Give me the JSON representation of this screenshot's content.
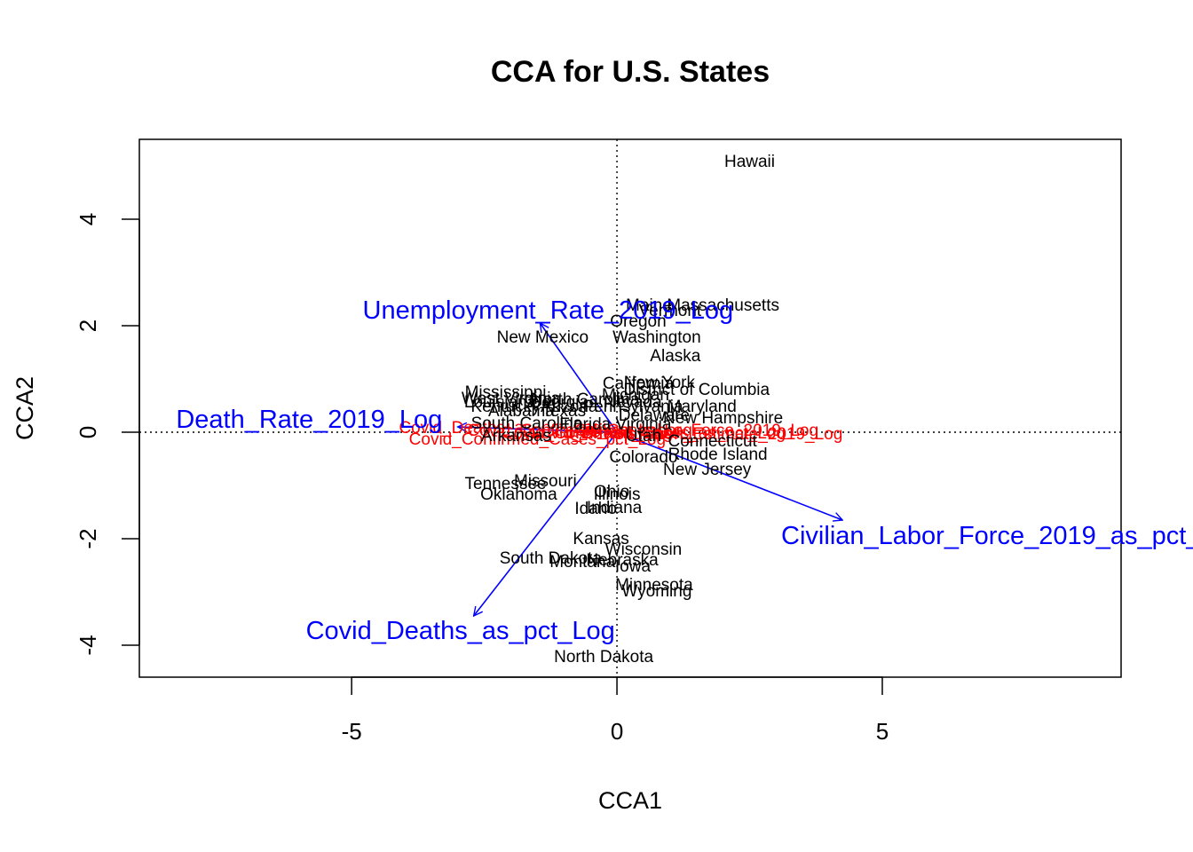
{
  "chart_data": {
    "type": "scatter",
    "title": "CCA for U.S. States",
    "xlabel": "CCA1",
    "ylabel": "CCA2",
    "xlim": [
      -9.0,
      9.5
    ],
    "ylim": [
      -4.6,
      5.5
    ],
    "xticks": [
      -5,
      0,
      5
    ],
    "yticks": [
      -4,
      -2,
      0,
      2,
      4
    ],
    "reference_lines": {
      "x": 0,
      "y": 0,
      "style": "dotted"
    },
    "colors": {
      "sites": "#000000",
      "species": "#ff0000",
      "biplot": "#0000ff"
    },
    "sites": [
      {
        "name": "Hawaii",
        "x": 2.5,
        "y": 5.1
      },
      {
        "name": "Maine",
        "x": 0.6,
        "y": 2.4
      },
      {
        "name": "Massachusetts",
        "x": 2.0,
        "y": 2.4
      },
      {
        "name": "Vermont",
        "x": 1.0,
        "y": 2.3
      },
      {
        "name": "Oregon",
        "x": 0.4,
        "y": 2.1
      },
      {
        "name": "Washington",
        "x": 0.75,
        "y": 1.8
      },
      {
        "name": "New Mexico",
        "x": -1.4,
        "y": 1.8
      },
      {
        "name": "Alaska",
        "x": 1.1,
        "y": 1.45
      },
      {
        "name": "New York",
        "x": 0.8,
        "y": 0.95
      },
      {
        "name": "California",
        "x": 0.4,
        "y": 0.93
      },
      {
        "name": "District of Columbia",
        "x": 1.5,
        "y": 0.82
      },
      {
        "name": "Mississippi",
        "x": -2.1,
        "y": 0.77
      },
      {
        "name": "Michigan",
        "x": 0.35,
        "y": 0.72
      },
      {
        "name": "West Virginia",
        "x": -2.0,
        "y": 0.65
      },
      {
        "name": "North Carolina",
        "x": -0.6,
        "y": 0.63
      },
      {
        "name": "Louisiana",
        "x": -2.2,
        "y": 0.58
      },
      {
        "name": "Georgia",
        "x": -1.1,
        "y": 0.58
      },
      {
        "name": "Nevada",
        "x": 0.3,
        "y": 0.58
      },
      {
        "name": "Kentucky",
        "x": -2.1,
        "y": 0.5
      },
      {
        "name": "Arizona",
        "x": -0.9,
        "y": 0.5
      },
      {
        "name": "Pennsylvania",
        "x": 0.3,
        "y": 0.5
      },
      {
        "name": "Maryland",
        "x": 1.6,
        "y": 0.5
      },
      {
        "name": "Alabama",
        "x": -1.8,
        "y": 0.42
      },
      {
        "name": "Texas",
        "x": -1.0,
        "y": 0.42
      },
      {
        "name": "Delaware",
        "x": 0.7,
        "y": 0.33
      },
      {
        "name": "New Hampshire",
        "x": 2.0,
        "y": 0.28
      },
      {
        "name": "South Carolina",
        "x": -1.7,
        "y": 0.18
      },
      {
        "name": "Florida",
        "x": -0.6,
        "y": 0.17
      },
      {
        "name": "Virginia",
        "x": 0.5,
        "y": 0.17
      },
      {
        "name": "Arkansas",
        "x": -1.9,
        "y": -0.05
      },
      {
        "name": "Utah",
        "x": 0.5,
        "y": -0.05
      },
      {
        "name": "Connecticut",
        "x": 1.8,
        "y": -0.15
      },
      {
        "name": "Colorado",
        "x": 0.5,
        "y": -0.45
      },
      {
        "name": "Rhode Island",
        "x": 1.9,
        "y": -0.4
      },
      {
        "name": "New Jersey",
        "x": 1.7,
        "y": -0.68
      },
      {
        "name": "Missouri",
        "x": -1.35,
        "y": -0.9
      },
      {
        "name": "Tennessee",
        "x": -2.1,
        "y": -0.95
      },
      {
        "name": "Ohio",
        "x": -0.1,
        "y": -1.1
      },
      {
        "name": "Illinois",
        "x": 0.0,
        "y": -1.15
      },
      {
        "name": "Oklahoma",
        "x": -1.85,
        "y": -1.15
      },
      {
        "name": "Indiana",
        "x": -0.05,
        "y": -1.4
      },
      {
        "name": "Idaho",
        "x": -0.4,
        "y": -1.42
      },
      {
        "name": "Kansas",
        "x": -0.3,
        "y": -1.98
      },
      {
        "name": "Wisconsin",
        "x": 0.5,
        "y": -2.18
      },
      {
        "name": "South Dakota",
        "x": -1.25,
        "y": -2.35
      },
      {
        "name": "Nebraska",
        "x": 0.1,
        "y": -2.38
      },
      {
        "name": "Montana",
        "x": -0.65,
        "y": -2.42
      },
      {
        "name": "Iowa",
        "x": 0.3,
        "y": -2.5
      },
      {
        "name": "Minnesota",
        "x": 0.7,
        "y": -2.85
      },
      {
        "name": "Wyoming",
        "x": 0.75,
        "y": -2.97
      },
      {
        "name": "North Dakota",
        "x": -0.25,
        "y": -4.2
      }
    ],
    "species": [
      {
        "name": "Covid_Deaths_as_pct_Log",
        "x": -2.2,
        "y": 0.1
      },
      {
        "name": "Covid_Confirmed_Cases_Log",
        "x": -0.7,
        "y": 0.05
      },
      {
        "name": "Covid_Confirmed_Cases_as_pct_Log",
        "x": 0.5,
        "y": 0.0
      },
      {
        "name": "Civilian_Labor_Force_2019_Log",
        "x": 1.5,
        "y": 0.05
      },
      {
        "name": "Population_Estimate_2019_Log",
        "x": 2.0,
        "y": -0.02
      },
      {
        "name": "Covid_Deaths_Log",
        "x": -0.3,
        "y": 0.0
      },
      {
        "name": "Covid_Confirmed_Cases_pct_Log",
        "x": -1.5,
        "y": -0.12
      }
    ],
    "biplot": [
      {
        "name": "Unemployment_Rate_2019_Log",
        "x": -1.45,
        "y": 2.05,
        "label_x": -1.3,
        "label_y": 2.3
      },
      {
        "name": "Death_Rate_2019_Log",
        "x": -3.0,
        "y": 0.1,
        "label_x": -5.8,
        "label_y": 0.25
      },
      {
        "name": "Civilian_Labor_Force_2019_as_pct_Log",
        "x": 4.25,
        "y": -1.65,
        "label_x": 7.45,
        "label_y": -1.93
      },
      {
        "name": "Covid_Deaths_as_pct_Log",
        "x": -2.7,
        "y": -3.45,
        "label_x": -2.95,
        "label_y": -3.72
      }
    ]
  }
}
